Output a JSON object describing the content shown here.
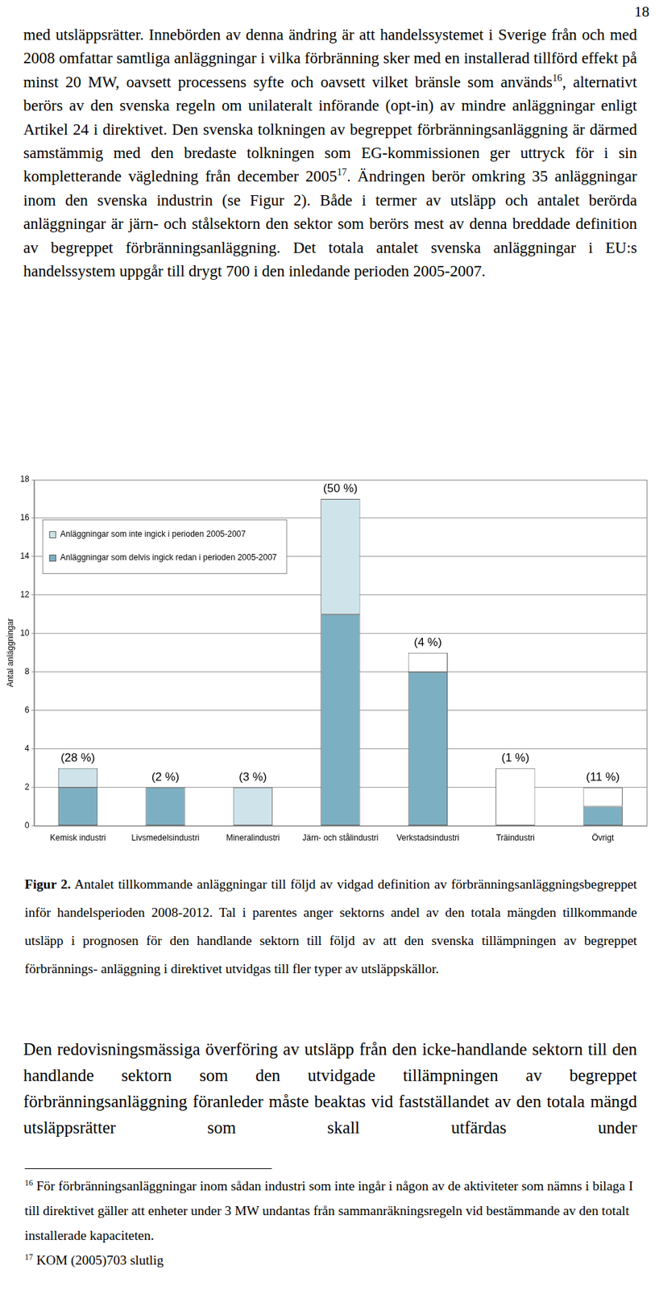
{
  "page_number": "18",
  "paragraph_1": [
    {
      "t": "med utsläppsrätter. Innebörden av denna ändring är att handelssystemet i Sverige från och med 2008 omfattar samtliga anläggningar i vilka förbränning sker med en installerad tillförd effekt på minst 20 MW, oavsett processens syfte och oavsett vilket bränsle som används"
    },
    {
      "sup": "16"
    },
    {
      "t": ", alternativt berörs av den svenska regeln om unilateralt införande (opt-in) av mindre anläggningar enligt Artikel 24 i direktivet. Den svenska tolkningen av begreppet förbränningsanläggning är därmed samstämmig med den bredaste tolkningen som EG-kommissionen ger uttryck för i sin kompletterande vägledning från december 2005"
    },
    {
      "sup": "17"
    },
    {
      "t": ". Ändringen berör omkring 35 anläggningar inom den svenska industrin (se Figur 2). Både i termer av utsläpp och antalet berörda anläggningar är järn- och stålsektorn den sektor som berörs mest av denna breddade definition av begreppet förbränningsanläggning. Det totala antalet svenska anläggningar i EU:s handelssystem uppgår till drygt 700 i den inledande perioden 2005-2007."
    }
  ],
  "chart_data": {
    "type": "bar",
    "stacked": true,
    "categories": [
      "Kemisk industri",
      "Livsmedelsindustri",
      "Mineralindustri",
      "Järn- och stålindustri",
      "Verkstadsindustri",
      "Träindustri",
      "Övrigt"
    ],
    "series": [
      {
        "name": "Anläggningar som delvis ingick redan i perioden 2005-2007",
        "color": "#7dafc2",
        "values": [
          2,
          2,
          0,
          11,
          8,
          0,
          1
        ]
      },
      {
        "name": "Anläggningar som inte ingick i perioden 2005-2007",
        "color": "#cfe3eb",
        "values": [
          1,
          0,
          2,
          6,
          0,
          0,
          0
        ]
      },
      {
        "name": null,
        "color": "#ffffff",
        "values": [
          0,
          0,
          0,
          0,
          1,
          3,
          1
        ]
      }
    ],
    "annotations": [
      "(28 %)",
      "(2 %)",
      "(3 %)",
      "(50 %)",
      "(4 %)",
      "(1 %)",
      "(11 %)"
    ],
    "ylabel": "Antal anläggningar",
    "ylim": [
      0,
      18
    ],
    "yticks": [
      0,
      2,
      4,
      6,
      8,
      10,
      12,
      14,
      16,
      18
    ],
    "grid": true,
    "legend": "upper left"
  },
  "caption": [
    {
      "b": "Figur 2."
    },
    {
      "t": " Antalet tillkommande anläggningar till följd av vidgad definition av förbränningsanläggningsbegreppet inför handelsperioden 2008-2012. Tal i parentes anger sektorns andel av den totala mängden tillkommande utsläpp i prognosen för den handlande sektorn till följd av att den svenska tillämpningen av begreppet förbrännings- anläggning i direktivet utvidgas till fler typer av utsläppskällor."
    }
  ],
  "paragraph_2": [
    {
      "t": "Den redovisningsmässiga överföring av utsläpp från den icke-handlande sektorn till den handlande sektorn som den utvidgade tillämpningen av begreppet förbränningsanläggning föranleder måste beaktas vid fastställandet av den totala mängd utsläppsrätter som skall utfärdas under"
    }
  ],
  "footnotes": [
    [
      {
        "sup": "16"
      },
      {
        "t": " För förbränningsanläggningar inom sådan industri som inte ingår i någon av de aktiviteter som nämns i bilaga I till direktivet gäller att enheter under 3 MW undantas från sammanräkningsregeln vid bestämmande av den totalt installerade kapaciteten."
      }
    ],
    [
      {
        "sup": "17"
      },
      {
        "t": " KOM (2005)703 slutlig"
      }
    ]
  ]
}
